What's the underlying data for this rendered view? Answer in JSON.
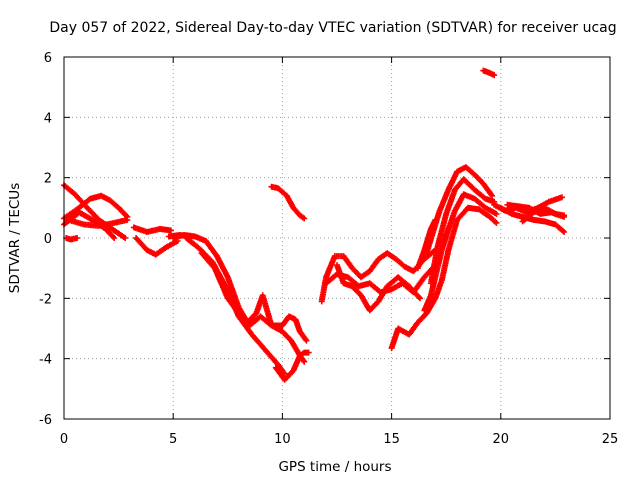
{
  "chart_data": {
    "type": "scatter",
    "title": "Day 057 of 2022, Sidereal Day-to-day VTEC variation (SDTVAR) for receiver ucag",
    "xlabel": "GPS time / hours",
    "ylabel": "SDTVAR / TECUs",
    "xlim": [
      0,
      25
    ],
    "ylim": [
      -6,
      6
    ],
    "x_ticks": [
      "0",
      "5",
      "10",
      "15",
      "20",
      "25"
    ],
    "y_ticks": [
      "-6",
      "-4",
      "-2",
      "0",
      "2",
      "4",
      "6"
    ],
    "grid": true,
    "marker": "+",
    "marker_color": "#ff0000",
    "tracks": [
      {
        "name": "track-01",
        "points": [
          [
            0.0,
            1.75
          ],
          [
            0.5,
            1.45
          ],
          [
            1.0,
            1.05
          ],
          [
            1.6,
            0.6
          ],
          [
            2.2,
            0.3
          ],
          [
            2.8,
            0.0
          ]
        ]
      },
      {
        "name": "track-02",
        "points": [
          [
            0.0,
            0.65
          ],
          [
            0.6,
            0.95
          ],
          [
            1.2,
            1.3
          ],
          [
            1.7,
            1.4
          ],
          [
            2.1,
            1.25
          ],
          [
            2.5,
            1.0
          ],
          [
            2.9,
            0.7
          ]
        ]
      },
      {
        "name": "track-03",
        "points": [
          [
            0.0,
            0.45
          ],
          [
            0.7,
            0.85
          ],
          [
            1.3,
            0.6
          ],
          [
            1.9,
            0.3
          ],
          [
            2.3,
            0.0
          ]
        ]
      },
      {
        "name": "track-04",
        "points": [
          [
            0.1,
            0.0
          ],
          [
            0.3,
            -0.05
          ],
          [
            0.6,
            0.0
          ]
        ]
      },
      {
        "name": "track-05",
        "points": [
          [
            0.2,
            0.6
          ],
          [
            0.9,
            0.45
          ],
          [
            1.6,
            0.4
          ],
          [
            2.3,
            0.5
          ],
          [
            2.9,
            0.6
          ]
        ]
      },
      {
        "name": "track-06",
        "points": [
          [
            3.2,
            0.35
          ],
          [
            3.8,
            0.2
          ],
          [
            4.4,
            0.3
          ],
          [
            4.9,
            0.25
          ]
        ]
      },
      {
        "name": "track-07",
        "points": [
          [
            3.3,
            0.0
          ],
          [
            3.8,
            -0.4
          ],
          [
            4.2,
            -0.55
          ],
          [
            4.7,
            -0.3
          ],
          [
            5.2,
            -0.1
          ]
        ]
      },
      {
        "name": "track-08",
        "points": [
          [
            4.8,
            0.05
          ],
          [
            5.3,
            0.1
          ],
          [
            5.8,
            0.05
          ]
        ]
      },
      {
        "name": "track-09",
        "points": [
          [
            5.0,
            0.0
          ],
          [
            5.5,
            0.1
          ],
          [
            6.0,
            0.05
          ],
          [
            6.5,
            -0.1
          ],
          [
            7.0,
            -0.6
          ],
          [
            7.5,
            -1.3
          ],
          [
            8.0,
            -2.3
          ],
          [
            8.4,
            -2.8
          ],
          [
            8.8,
            -2.5
          ],
          [
            9.1,
            -1.9
          ],
          [
            9.5,
            -2.9
          ],
          [
            10.0,
            -3.1
          ],
          [
            10.4,
            -3.4
          ],
          [
            10.8,
            -3.9
          ],
          [
            11.0,
            -4.1
          ]
        ]
      },
      {
        "name": "track-10",
        "points": [
          [
            5.6,
            0.0
          ],
          [
            6.2,
            -0.35
          ],
          [
            6.8,
            -0.8
          ],
          [
            7.4,
            -1.6
          ],
          [
            8.0,
            -2.6
          ],
          [
            8.6,
            -3.2
          ],
          [
            9.2,
            -3.7
          ],
          [
            9.8,
            -4.2
          ],
          [
            10.1,
            -4.5
          ]
        ]
      },
      {
        "name": "track-11",
        "points": [
          [
            6.3,
            -0.5
          ],
          [
            6.9,
            -1.0
          ],
          [
            7.5,
            -2.0
          ],
          [
            8.0,
            -2.5
          ],
          [
            8.5,
            -2.9
          ],
          [
            9.0,
            -2.6
          ],
          [
            9.5,
            -2.9
          ],
          [
            10.0,
            -2.9
          ],
          [
            10.3,
            -2.6
          ],
          [
            10.6,
            -2.7
          ],
          [
            10.8,
            -3.1
          ],
          [
            11.1,
            -3.4
          ]
        ]
      },
      {
        "name": "track-12",
        "points": [
          [
            9.7,
            -4.3
          ],
          [
            10.1,
            -4.7
          ],
          [
            10.5,
            -4.4
          ],
          [
            10.8,
            -3.9
          ],
          [
            11.0,
            -3.8
          ],
          [
            11.2,
            -3.8
          ]
        ]
      },
      {
        "name": "track-13",
        "points": [
          [
            9.5,
            1.7
          ],
          [
            9.8,
            1.65
          ],
          [
            10.2,
            1.4
          ],
          [
            10.5,
            1.0
          ],
          [
            10.8,
            0.75
          ],
          [
            11.0,
            0.65
          ]
        ]
      },
      {
        "name": "track-14",
        "points": [
          [
            11.8,
            -2.1
          ],
          [
            12.0,
            -1.3
          ],
          [
            12.4,
            -0.6
          ],
          [
            12.8,
            -0.6
          ],
          [
            13.2,
            -1.0
          ],
          [
            13.6,
            -1.3
          ],
          [
            14.0,
            -1.1
          ],
          [
            14.4,
            -0.7
          ],
          [
            14.8,
            -0.5
          ],
          [
            15.2,
            -0.7
          ],
          [
            15.6,
            -0.95
          ],
          [
            16.0,
            -1.1
          ],
          [
            16.5,
            -0.7
          ],
          [
            17.0,
            -0.4
          ]
        ]
      },
      {
        "name": "track-15",
        "points": [
          [
            12.0,
            -1.5
          ],
          [
            12.5,
            -1.2
          ],
          [
            13.0,
            -1.3
          ],
          [
            13.5,
            -1.6
          ],
          [
            14.0,
            -1.5
          ],
          [
            14.5,
            -1.8
          ],
          [
            15.0,
            -1.7
          ],
          [
            15.5,
            -1.5
          ],
          [
            16.0,
            -1.8
          ],
          [
            16.5,
            -1.3
          ],
          [
            17.0,
            -0.9
          ]
        ]
      },
      {
        "name": "track-16",
        "points": [
          [
            12.5,
            -0.9
          ],
          [
            12.8,
            -1.5
          ],
          [
            13.2,
            -1.6
          ],
          [
            13.6,
            -1.9
          ],
          [
            14.0,
            -2.4
          ],
          [
            14.4,
            -2.1
          ],
          [
            14.8,
            -1.6
          ],
          [
            15.3,
            -1.3
          ],
          [
            15.8,
            -1.6
          ],
          [
            16.3,
            -2.0
          ]
        ]
      },
      {
        "name": "track-17",
        "points": [
          [
            15.0,
            -3.65
          ],
          [
            15.3,
            -3.0
          ],
          [
            15.8,
            -3.2
          ],
          [
            16.2,
            -2.8
          ],
          [
            16.6,
            -2.5
          ],
          [
            17.0,
            -2.0
          ],
          [
            17.3,
            -1.4
          ],
          [
            17.6,
            -0.4
          ],
          [
            18.0,
            0.6
          ],
          [
            18.5,
            1.0
          ],
          [
            19.0,
            0.95
          ],
          [
            19.5,
            0.7
          ],
          [
            19.8,
            0.5
          ]
        ]
      },
      {
        "name": "track-18",
        "points": [
          [
            16.5,
            -2.4
          ],
          [
            16.8,
            -1.9
          ],
          [
            17.0,
            -1.3
          ],
          [
            17.3,
            -0.4
          ],
          [
            17.6,
            0.3
          ],
          [
            17.9,
            0.9
          ],
          [
            18.3,
            1.45
          ],
          [
            18.8,
            1.3
          ],
          [
            19.3,
            1.0
          ],
          [
            19.8,
            0.8
          ]
        ]
      },
      {
        "name": "track-19",
        "points": [
          [
            16.6,
            -0.5
          ],
          [
            16.9,
            0.2
          ],
          [
            17.2,
            0.9
          ],
          [
            17.6,
            1.6
          ],
          [
            18.0,
            2.2
          ],
          [
            18.4,
            2.35
          ],
          [
            18.8,
            2.1
          ],
          [
            19.2,
            1.8
          ],
          [
            19.6,
            1.4
          ]
        ]
      },
      {
        "name": "track-20",
        "points": [
          [
            16.8,
            -1.5
          ],
          [
            17.1,
            -0.3
          ],
          [
            17.5,
            0.8
          ],
          [
            17.9,
            1.6
          ],
          [
            18.3,
            1.95
          ],
          [
            18.8,
            1.6
          ],
          [
            19.3,
            1.3
          ],
          [
            19.7,
            1.2
          ]
        ]
      },
      {
        "name": "track-21",
        "points": [
          [
            16.2,
            -1.0
          ],
          [
            16.5,
            -0.4
          ],
          [
            16.8,
            0.3
          ],
          [
            17.0,
            0.6
          ]
        ]
      },
      {
        "name": "track-22",
        "points": [
          [
            19.7,
            1.1
          ],
          [
            20.2,
            0.9
          ],
          [
            20.7,
            1.0
          ],
          [
            21.2,
            0.85
          ],
          [
            21.7,
            1.0
          ],
          [
            22.2,
            1.2
          ],
          [
            22.8,
            1.35
          ]
        ]
      },
      {
        "name": "track-23",
        "points": [
          [
            20.0,
            1.0
          ],
          [
            20.5,
            0.8
          ],
          [
            21.0,
            0.7
          ],
          [
            21.5,
            0.6
          ],
          [
            22.0,
            0.55
          ],
          [
            22.5,
            0.45
          ],
          [
            22.9,
            0.2
          ]
        ]
      },
      {
        "name": "track-24",
        "points": [
          [
            20.3,
            1.1
          ],
          [
            20.8,
            1.05
          ],
          [
            21.3,
            1.0
          ],
          [
            21.8,
            0.8
          ],
          [
            22.3,
            0.85
          ],
          [
            22.9,
            0.7
          ]
        ]
      },
      {
        "name": "track-25",
        "points": [
          [
            21.0,
            0.55
          ],
          [
            21.5,
            0.85
          ],
          [
            22.0,
            1.0
          ],
          [
            22.5,
            0.8
          ],
          [
            22.9,
            0.75
          ]
        ]
      },
      {
        "name": "track-26",
        "points": [
          [
            19.2,
            5.55
          ],
          [
            19.4,
            5.5
          ],
          [
            19.7,
            5.4
          ]
        ]
      }
    ]
  }
}
